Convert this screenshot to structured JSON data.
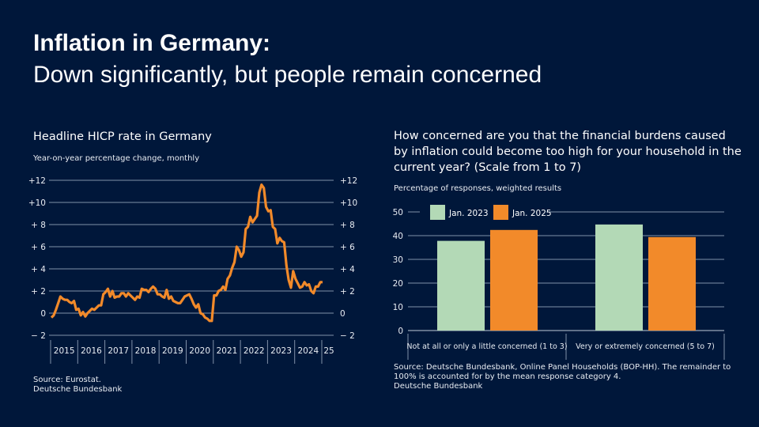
{
  "title": "Inflation in Germany:",
  "subtitle": "Down significantly, but people remain concerned",
  "chart_data": [
    {
      "type": "line",
      "title": "Headline HICP rate in Germany",
      "subtitle": "Year-on-year percentage change, monthly",
      "ylim": [
        -2,
        12
      ],
      "yticks": [
        "− 2",
        "0",
        "+ 2",
        "+ 4",
        "+ 6",
        "+ 8",
        "+10",
        "+12"
      ],
      "ytick_values": [
        -2,
        0,
        2,
        4,
        6,
        8,
        10,
        12
      ],
      "xtick_labels": [
        "2015",
        "2016",
        "2017",
        "2018",
        "2019",
        "2020",
        "2021",
        "2022",
        "2023",
        "2024",
        "25"
      ],
      "grid": true,
      "color": "#f28a2a",
      "start": "2015-01",
      "frequency": "monthly",
      "values": [
        -0.4,
        -0.2,
        0.3,
        0.9,
        1.5,
        1.3,
        1.2,
        1.2,
        1.0,
        0.9,
        1.1,
        0.3,
        0.4,
        -0.2,
        0.1,
        -0.3,
        0.0,
        0.2,
        0.4,
        0.3,
        0.5,
        0.7,
        0.7,
        1.7,
        1.9,
        2.2,
        1.5,
        2.0,
        1.4,
        1.5,
        1.5,
        1.8,
        1.8,
        1.5,
        1.8,
        1.6,
        1.4,
        1.2,
        1.5,
        1.4,
        2.2,
        2.1,
        2.1,
        1.9,
        2.2,
        2.4,
        2.2,
        1.7,
        1.7,
        1.5,
        1.4,
        2.1,
        1.3,
        1.5,
        1.1,
        1.0,
        0.9,
        0.9,
        1.2,
        1.5,
        1.6,
        1.7,
        1.3,
        0.8,
        0.5,
        0.8,
        0.0,
        -0.1,
        -0.4,
        -0.5,
        -0.7,
        -0.7,
        1.6,
        1.6,
        2.0,
        2.1,
        2.4,
        2.1,
        3.1,
        3.4,
        4.1,
        4.6,
        6.0,
        5.7,
        5.1,
        5.5,
        7.6,
        7.8,
        8.7,
        8.2,
        8.5,
        8.8,
        10.9,
        11.6,
        11.3,
        9.6,
        9.2,
        9.3,
        7.8,
        7.6,
        6.3,
        6.8,
        6.5,
        6.4,
        4.3,
        3.0,
        2.3,
        3.8,
        3.1,
        2.7,
        2.3,
        2.4,
        2.8,
        2.5,
        2.6,
        2.0,
        1.8,
        2.4,
        2.4,
        2.8,
        2.8
      ],
      "source": [
        "Source: Eurostat.",
        "Deutsche Bundesbank"
      ]
    },
    {
      "type": "bar",
      "title": "How concerned are you that the financial burdens caused by inflation could become too high for your household in the current year? (Scale from 1 to 7)",
      "subtitle": "Percentage of responses, weighted results",
      "ylim": [
        0,
        50
      ],
      "yticks": [
        "0",
        "10",
        "20",
        "30",
        "40",
        "50"
      ],
      "grid": true,
      "legend": "top-left",
      "categories": [
        "Not at all or only a little concerned (1 to 3)",
        "Very or extremely concerned (5 to 7)"
      ],
      "series": [
        {
          "name": "Jan. 2023",
          "values": [
            37.8,
            44.7
          ],
          "color": "#b3d9b6"
        },
        {
          "name": "Jan. 2025",
          "values": [
            42.4,
            39.4
          ],
          "color": "#f28a2a"
        }
      ],
      "source": [
        "Source: Deutsche Bundesbank, Online Panel Households (BOP-HH). The remainder to",
        "100% is accounted for by the mean response category 4.",
        "Deutsche Bundesbank"
      ]
    }
  ]
}
